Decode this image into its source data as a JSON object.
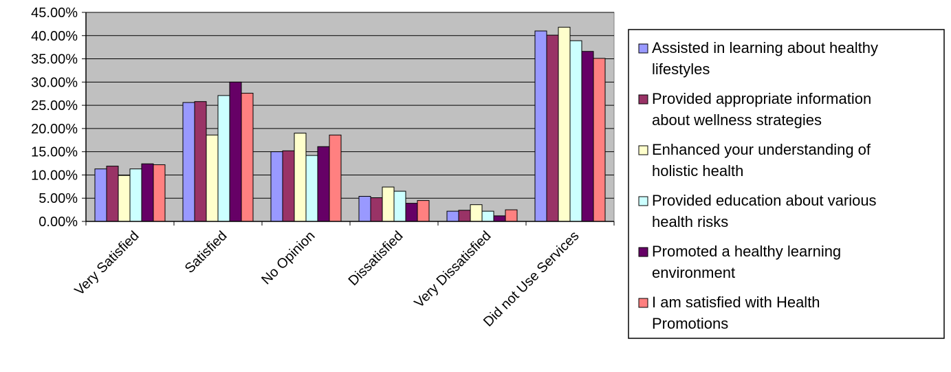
{
  "chart_data": {
    "type": "bar",
    "title": "",
    "xlabel": "",
    "ylabel": "",
    "ylim": [
      0,
      45
    ],
    "y_ticks": [
      "0.00%",
      "5.00%",
      "10.00%",
      "15.00%",
      "20.00%",
      "25.00%",
      "30.00%",
      "35.00%",
      "40.00%",
      "45.00%"
    ],
    "grid": true,
    "legend_position": "right",
    "categories": [
      "Very Satisfied",
      "Satisfied",
      "No Opinion",
      "Dissatisfied",
      "Very Dissatisfied",
      "Did not Use Services"
    ],
    "series": [
      {
        "name": "Assisted in learning about healthy lifestyles",
        "legend_lines": [
          "Assisted in learning about healthy",
          "lifestyles"
        ],
        "color": "#9999ff",
        "values": [
          11.3,
          25.6,
          15.0,
          5.4,
          2.2,
          41.0
        ]
      },
      {
        "name": "Provided appropriate information about wellness strategies",
        "legend_lines": [
          "Provided appropriate information",
          "about wellness strategies"
        ],
        "color": "#993366",
        "values": [
          11.9,
          25.8,
          15.2,
          5.1,
          2.4,
          40.1
        ]
      },
      {
        "name": "Enhanced your understanding of holistic health",
        "legend_lines": [
          "Enhanced your understanding of",
          "holistic health"
        ],
        "color": "#ffffcc",
        "values": [
          9.9,
          18.6,
          19.0,
          7.4,
          3.6,
          41.8
        ]
      },
      {
        "name": "Provided education about various health risks",
        "legend_lines": [
          "Provided education about various",
          "health risks"
        ],
        "color": "#ccffff",
        "values": [
          11.3,
          27.1,
          14.2,
          6.5,
          2.2,
          38.9
        ]
      },
      {
        "name": "Promoted a healthy learning environment",
        "legend_lines": [
          "Promoted a healthy learning",
          "environment"
        ],
        "color": "#660066",
        "values": [
          12.4,
          30.0,
          16.1,
          3.9,
          1.2,
          36.6
        ]
      },
      {
        "name": "I am satisfied with Health Promotions",
        "legend_lines": [
          "I am satisfied with Health",
          "Promotions"
        ],
        "color": "#ff8080",
        "values": [
          12.2,
          27.6,
          18.6,
          4.5,
          2.5,
          35.1
        ]
      }
    ],
    "colors": {
      "plot_background": "#c0c0c0",
      "gridline": "#000000",
      "bar_outline": "#000000"
    }
  }
}
